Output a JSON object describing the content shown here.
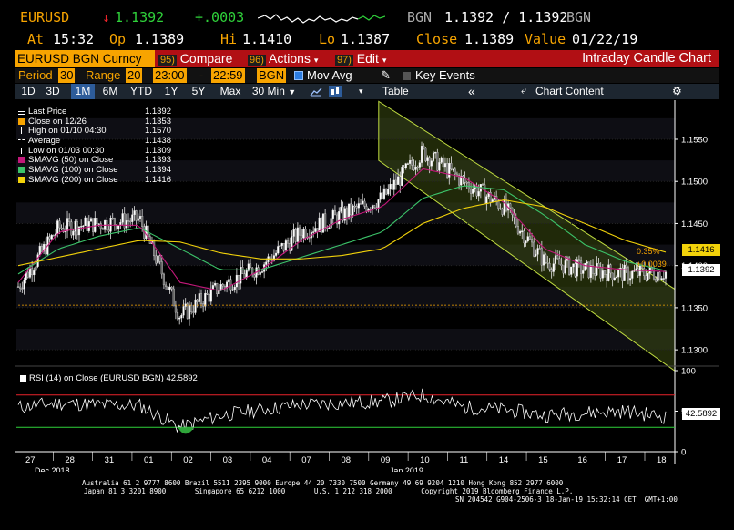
{
  "header": {
    "ticker": "EURUSD",
    "arrow": "↓",
    "last": "1.1392",
    "change": "+.0003",
    "source": "BGN",
    "bid_ask": "1.1392 / 1.1392",
    "source2": "BGN",
    "at_label": "At",
    "time": "15:32",
    "op_label": "Op",
    "open": "1.1389",
    "hi_label": "Hi",
    "high": "1.1410",
    "lo_label": "Lo",
    "low": "1.1387",
    "close_label": "Close",
    "close": "1.1389",
    "value_label": "Value",
    "value_date": "01/22/19"
  },
  "toolbar": {
    "security": "EURUSD BGN Curncy",
    "compare_num": "95)",
    "compare_label": "Compare",
    "actions_num": "96)",
    "actions_label": "Actions",
    "edit_num": "97)",
    "edit_label": "Edit",
    "chart_title": "Intraday Candle Chart"
  },
  "settings": {
    "period_label": "Period",
    "period_value": "30",
    "range_label": "Range",
    "range_value": "20",
    "time_from": "23:00",
    "dash": "-",
    "time_to": "22:59",
    "source": "BGN",
    "mov_avg_label": "Mov Avg",
    "key_events_label": "Key Events"
  },
  "tabs": {
    "items": [
      "1D",
      "3D",
      "1M",
      "6M",
      "YTD",
      "1Y",
      "5Y",
      "Max"
    ],
    "active": "1M",
    "interval": "30 Min",
    "table_label": "Table",
    "chart_content_label": "Chart Content"
  },
  "legend": [
    {
      "label": "Last Price",
      "value": "1.1392",
      "color": "#ffffff",
      "marker": "line"
    },
    {
      "label": "Close on 12/26",
      "value": "1.1353",
      "color": "#f7a400",
      "marker": "box"
    },
    {
      "label": "High on 01/10 04:30",
      "value": "1.1570",
      "color": "#ffffff",
      "marker": "tick"
    },
    {
      "label": "Average",
      "value": "1.1438",
      "color": "#ffffff",
      "marker": "cross"
    },
    {
      "label": "Low on 01/03 00:30",
      "value": "1.1309",
      "color": "#ffffff",
      "marker": "tick"
    },
    {
      "label": "SMAVG (50)  on Close",
      "value": "1.1393",
      "color": "#c2187a",
      "marker": "box"
    },
    {
      "label": "SMAVG (100)  on Close",
      "value": "1.1394",
      "color": "#3cc46a",
      "marker": "box"
    },
    {
      "label": "SMAVG (200)  on Close",
      "value": "1.1416",
      "color": "#f2d20a",
      "marker": "box"
    }
  ],
  "right_labels": {
    "pct": "0.35%",
    "abs": "+0.0039",
    "sma200": "1.1416",
    "last": "1.1392",
    "rsi": "42.5892"
  },
  "rsi": {
    "title": "RSI (14)  on Close (EURUSD BGN) 42.5892",
    "levels": [
      100,
      50,
      0
    ]
  },
  "x_axis": {
    "ticks": [
      "27",
      "28",
      "31",
      "01",
      "02",
      "03",
      "04",
      "07",
      "08",
      "09",
      "10",
      "11",
      "14",
      "15",
      "16",
      "17",
      "18"
    ],
    "month_labels": [
      "Dec 2018",
      "Jan 2019"
    ]
  },
  "footer": {
    "line1": "Australia 61 2 9777 8600 Brazil 5511 2395 9000 Europe 44 20 7330 7500 Germany 49 69 9204 1210 Hong Kong 852 2977 6000",
    "line2": "Japan 81 3 3201 8900       Singapore 65 6212 1000       U.S. 1 212 318 2000       Copyright 2019 Bloomberg Finance L.P.",
    "line3": "SN 204542 G904-2506-3 18-Jan-19 15:32:14 CET  GMT+1:00"
  },
  "colors": {
    "accent": "#f7a400",
    "toolbar_red": "#b10f14",
    "up": "#2fd13a",
    "down": "#e8232a",
    "sma50": "#c2187a",
    "sma100": "#3cc46a",
    "sma200": "#f2d20a",
    "channel": "#9abf3a"
  },
  "chart_data": {
    "type": "candlestick",
    "ylim": [
      1.1285,
      1.159
    ],
    "y_ticks": [
      1.13,
      1.135,
      1.14,
      1.145,
      1.15,
      1.155
    ],
    "series": [
      {
        "name": "Last Price",
        "x": [
          "27",
          "28",
          "31",
          "01",
          "02",
          "03",
          "04",
          "07",
          "08",
          "09",
          "10",
          "11",
          "14",
          "15",
          "16",
          "17",
          "18"
        ],
        "values": [
          1.1375,
          1.1445,
          1.145,
          1.1455,
          1.134,
          1.1375,
          1.14,
          1.144,
          1.146,
          1.148,
          1.1535,
          1.15,
          1.147,
          1.1405,
          1.1395,
          1.139,
          1.1392
        ]
      },
      {
        "name": "SMAVG (50)  on Close",
        "values": [
          1.138,
          1.144,
          1.1448,
          1.1448,
          1.138,
          1.137,
          1.1395,
          1.143,
          1.1455,
          1.147,
          1.1515,
          1.1505,
          1.1475,
          1.142,
          1.14,
          1.1395,
          1.1393
        ]
      },
      {
        "name": "SMAVG (100)  on Close",
        "values": [
          1.139,
          1.142,
          1.1435,
          1.1445,
          1.142,
          1.1395,
          1.1395,
          1.141,
          1.1425,
          1.144,
          1.148,
          1.1495,
          1.149,
          1.146,
          1.1425,
          1.1405,
          1.1394
        ]
      },
      {
        "name": "SMAVG (200)  on Close",
        "values": [
          1.14,
          1.141,
          1.142,
          1.143,
          1.1428,
          1.1415,
          1.1408,
          1.1408,
          1.1412,
          1.142,
          1.145,
          1.1468,
          1.1478,
          1.147,
          1.145,
          1.143,
          1.1416
        ]
      }
    ],
    "rsi_values": [
      55,
      60,
      58,
      57,
      30,
      45,
      52,
      58,
      60,
      62,
      70,
      55,
      52,
      45,
      48,
      50,
      43
    ]
  }
}
